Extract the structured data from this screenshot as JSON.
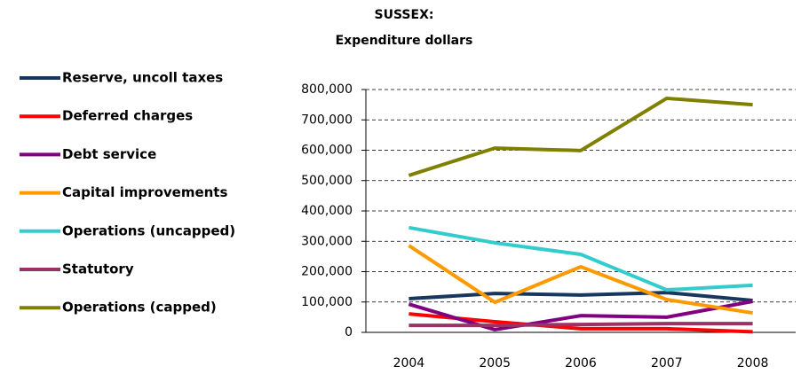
{
  "chart_data": {
    "type": "line",
    "title": "SUSSEX:",
    "subtitle": "Expenditure dollars",
    "categories": [
      "2004",
      "2005",
      "2006",
      "2007",
      "2008"
    ],
    "series": [
      {
        "name": "Reserve, uncoll taxes",
        "color": "#17375e",
        "values": [
          111000,
          128000,
          123000,
          131000,
          105000
        ]
      },
      {
        "name": "Deferred charges",
        "color": "#ff0000",
        "values": [
          61000,
          35000,
          12000,
          12000,
          2000
        ]
      },
      {
        "name": "Debt service",
        "color": "#800080",
        "values": [
          93000,
          9000,
          55000,
          50000,
          102000
        ]
      },
      {
        "name": "Capital improvements",
        "color": "#ff9900",
        "values": [
          286000,
          99000,
          216000,
          108000,
          64000
        ]
      },
      {
        "name": "Operations (uncapped)",
        "color": "#33cccc",
        "values": [
          345000,
          295000,
          257000,
          140000,
          155000
        ]
      },
      {
        "name": "Statutory",
        "color": "#993366",
        "values": [
          23000,
          23000,
          26000,
          29000,
          29000
        ]
      },
      {
        "name": "Operations (capped)",
        "color": "#808000",
        "values": [
          517000,
          607000,
          599000,
          771000,
          750000
        ]
      }
    ],
    "ylim": [
      0,
      800000
    ],
    "yticks": [
      0,
      {
        "value": 100000,
        "label": "100,000"
      },
      {
        "value": 200000,
        "label": "200,000"
      },
      {
        "value": 300000,
        "label": "300,000"
      },
      {
        "value": 400000,
        "label": "400,000"
      },
      {
        "value": 500000,
        "label": "500,000"
      },
      {
        "value": 600000,
        "label": "600,000"
      },
      {
        "value": 700000,
        "label": "700,000"
      },
      {
        "value": 800000,
        "label": "800,000"
      }
    ],
    "grid": true,
    "legend": "left"
  }
}
